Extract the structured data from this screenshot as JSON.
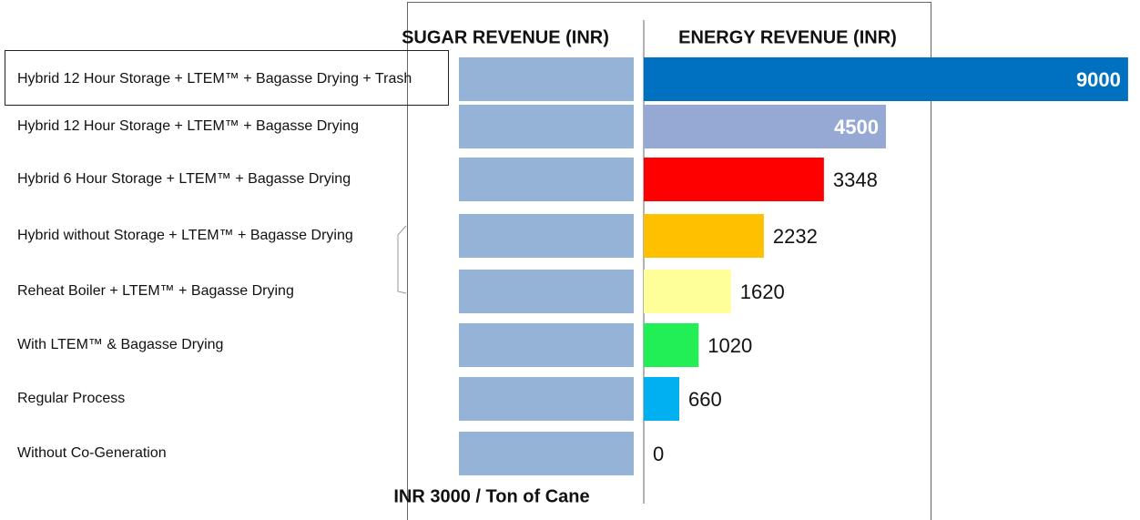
{
  "chart_data": {
    "type": "bar",
    "orientation": "horizontal",
    "categories": [
      "Hybrid 12 Hour Storage + LTEM™ + Bagasse Drying + Trash",
      "Hybrid 12 Hour Storage + LTEM™ + Bagasse Drying",
      "Hybrid 6 Hour Storage + LTEM™ + Bagasse Drying",
      "Hybrid without Storage + LTEM™ + Bagasse Drying",
      "Reheat Boiler + LTEM™ + Bagasse Drying",
      "With LTEM™ & Bagasse Drying",
      "Regular Process",
      "Without Co-Generation"
    ],
    "series": [
      {
        "name": "SUGAR REVENUE (INR)",
        "color": "#95b3d7",
        "values": [
          3000,
          3000,
          3000,
          3000,
          3000,
          3000,
          3000,
          3000
        ]
      },
      {
        "name": "ENERGY REVENUE (INR)",
        "colors": [
          "#0070c0",
          "#95a9d4",
          "#ff0000",
          "#ffc000",
          "#ffff99",
          "#22ee55",
          "#00b0f0",
          "#cccccc"
        ],
        "values": [
          9000,
          4500,
          3348,
          2232,
          1620,
          1020,
          660,
          0
        ]
      }
    ],
    "annotation": "INR 3000 / Ton of Cane"
  }
}
